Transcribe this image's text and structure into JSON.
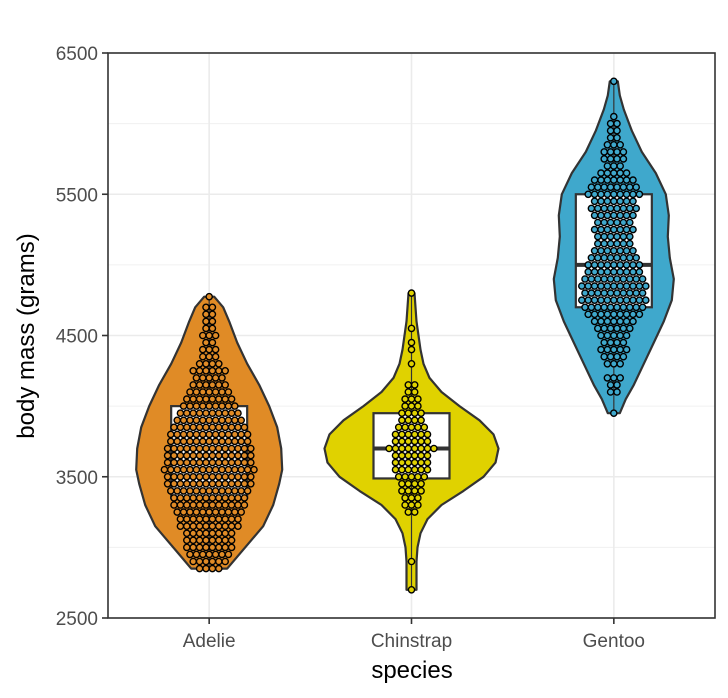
{
  "chart_data": {
    "type": "violin",
    "overlays": [
      "boxplot",
      "dotplot"
    ],
    "xlabel": "species",
    "ylabel": "body mass (grams)",
    "ylim": [
      2500,
      6500
    ],
    "yticks": [
      2500,
      3500,
      4500,
      5500,
      6500
    ],
    "grid": true,
    "legend": "none",
    "categories": [
      "Adelie",
      "Chinstrap",
      "Gentoo"
    ],
    "colors": [
      "#e08b26",
      "#e0d200",
      "#3fa8cc"
    ],
    "series": [
      {
        "category": "Adelie",
        "min": 2850,
        "max": 4775,
        "box": {
          "q1": 3350,
          "median": 3700,
          "q3": 4000
        },
        "density": [
          [
            2850,
            18
          ],
          [
            2950,
            30
          ],
          [
            3050,
            42
          ],
          [
            3150,
            54
          ],
          [
            3300,
            64
          ],
          [
            3450,
            70
          ],
          [
            3550,
            73
          ],
          [
            3700,
            72
          ],
          [
            3850,
            68
          ],
          [
            4000,
            60
          ],
          [
            4150,
            50
          ],
          [
            4300,
            38
          ],
          [
            4450,
            28
          ],
          [
            4600,
            20
          ],
          [
            4700,
            14
          ],
          [
            4775,
            5
          ]
        ],
        "dots": [
          [
            2850,
            4
          ],
          [
            2900,
            6
          ],
          [
            2950,
            7
          ],
          [
            3000,
            8
          ],
          [
            3050,
            8
          ],
          [
            3100,
            8
          ],
          [
            3150,
            10
          ],
          [
            3200,
            10
          ],
          [
            3250,
            11
          ],
          [
            3300,
            12
          ],
          [
            3350,
            12
          ],
          [
            3400,
            13
          ],
          [
            3450,
            14
          ],
          [
            3500,
            14
          ],
          [
            3550,
            15
          ],
          [
            3600,
            14
          ],
          [
            3650,
            14
          ],
          [
            3700,
            14
          ],
          [
            3750,
            13
          ],
          [
            3800,
            13
          ],
          [
            3850,
            12
          ],
          [
            3900,
            11
          ],
          [
            3950,
            10
          ],
          [
            4000,
            9
          ],
          [
            4050,
            8
          ],
          [
            4100,
            7
          ],
          [
            4150,
            6
          ],
          [
            4200,
            5
          ],
          [
            4250,
            6
          ],
          [
            4300,
            4
          ],
          [
            4350,
            3
          ],
          [
            4400,
            3
          ],
          [
            4450,
            2
          ],
          [
            4500,
            3
          ],
          [
            4550,
            2
          ],
          [
            4600,
            2
          ],
          [
            4650,
            2
          ],
          [
            4700,
            2
          ],
          [
            4775,
            1
          ]
        ]
      },
      {
        "category": "Chinstrap",
        "min": 2700,
        "max": 4800,
        "box": {
          "q1": 3488,
          "median": 3700,
          "q3": 3950
        },
        "density": [
          [
            2700,
            5
          ],
          [
            2800,
            5
          ],
          [
            2900,
            5
          ],
          [
            3000,
            6
          ],
          [
            3100,
            9
          ],
          [
            3200,
            16
          ],
          [
            3300,
            30
          ],
          [
            3400,
            52
          ],
          [
            3500,
            72
          ],
          [
            3600,
            84
          ],
          [
            3700,
            87
          ],
          [
            3800,
            82
          ],
          [
            3900,
            68
          ],
          [
            4000,
            48
          ],
          [
            4100,
            30
          ],
          [
            4200,
            18
          ],
          [
            4300,
            12
          ],
          [
            4400,
            9
          ],
          [
            4500,
            7
          ],
          [
            4600,
            5
          ],
          [
            4700,
            4
          ],
          [
            4800,
            3
          ]
        ],
        "dots": [
          [
            2700,
            1
          ],
          [
            2900,
            1
          ],
          [
            3250,
            2
          ],
          [
            3300,
            3
          ],
          [
            3350,
            3
          ],
          [
            3400,
            4
          ],
          [
            3450,
            4
          ],
          [
            3500,
            5
          ],
          [
            3550,
            6
          ],
          [
            3600,
            6
          ],
          [
            3650,
            6
          ],
          [
            3700,
            8
          ],
          [
            3750,
            6
          ],
          [
            3800,
            6
          ],
          [
            3850,
            5
          ],
          [
            3900,
            4
          ],
          [
            3950,
            4
          ],
          [
            4000,
            3
          ],
          [
            4050,
            3
          ],
          [
            4100,
            2
          ],
          [
            4150,
            2
          ],
          [
            4300,
            1
          ],
          [
            4400,
            1
          ],
          [
            4450,
            1
          ],
          [
            4550,
            1
          ],
          [
            4800,
            1
          ]
        ]
      },
      {
        "category": "Gentoo",
        "min": 3950,
        "max": 6300,
        "box": {
          "q1": 4700,
          "median": 5000,
          "q3": 5500
        },
        "density": [
          [
            3950,
            6
          ],
          [
            4050,
            12
          ],
          [
            4150,
            20
          ],
          [
            4300,
            30
          ],
          [
            4450,
            40
          ],
          [
            4600,
            50
          ],
          [
            4750,
            58
          ],
          [
            4900,
            60
          ],
          [
            5050,
            56
          ],
          [
            5200,
            54
          ],
          [
            5350,
            55
          ],
          [
            5500,
            52
          ],
          [
            5650,
            42
          ],
          [
            5800,
            28
          ],
          [
            5950,
            18
          ],
          [
            6100,
            10
          ],
          [
            6200,
            6
          ],
          [
            6300,
            4
          ]
        ],
        "dots": [
          [
            3950,
            1
          ],
          [
            4100,
            2
          ],
          [
            4150,
            2
          ],
          [
            4200,
            3
          ],
          [
            4300,
            3
          ],
          [
            4350,
            4
          ],
          [
            4400,
            5
          ],
          [
            4450,
            4
          ],
          [
            4500,
            5
          ],
          [
            4550,
            6
          ],
          [
            4600,
            7
          ],
          [
            4650,
            9
          ],
          [
            4700,
            10
          ],
          [
            4750,
            11
          ],
          [
            4800,
            10
          ],
          [
            4850,
            11
          ],
          [
            4900,
            10
          ],
          [
            4950,
            9
          ],
          [
            5000,
            9
          ],
          [
            5050,
            8
          ],
          [
            5100,
            7
          ],
          [
            5150,
            6
          ],
          [
            5200,
            6
          ],
          [
            5250,
            7
          ],
          [
            5300,
            6
          ],
          [
            5350,
            7
          ],
          [
            5400,
            8
          ],
          [
            5450,
            7
          ],
          [
            5500,
            9
          ],
          [
            5550,
            8
          ],
          [
            5600,
            7
          ],
          [
            5650,
            5
          ],
          [
            5700,
            3
          ],
          [
            5750,
            4
          ],
          [
            5800,
            4
          ],
          [
            5850,
            3
          ],
          [
            5900,
            2
          ],
          [
            5950,
            2
          ],
          [
            6000,
            2
          ],
          [
            6050,
            1
          ],
          [
            6300,
            1
          ]
        ]
      }
    ]
  }
}
